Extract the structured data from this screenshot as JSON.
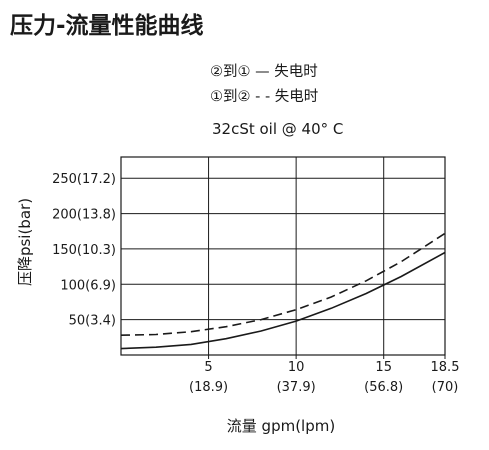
{
  "page": {
    "title": "压力-流量性能曲线"
  },
  "legend": {
    "items": [
      {
        "label": "②到① — 失电时",
        "style": "solid"
      },
      {
        "label": "①到② - - 失电时",
        "style": "dashed"
      }
    ],
    "placement": "top-center"
  },
  "condition": "32cSt oil @ 40° C",
  "chart_data": {
    "type": "line",
    "title": "压力-流量性能曲线",
    "xlabel": "流量 gpm(lpm)",
    "ylabel": "压降psi(bar)",
    "xlim": [
      0,
      18.5
    ],
    "ylim": [
      0,
      280
    ],
    "grid": true,
    "x_ticks": [
      {
        "value": 5,
        "label": "5",
        "sublabel": "(18.9)"
      },
      {
        "value": 10,
        "label": "10",
        "sublabel": "(37.9)"
      },
      {
        "value": 15,
        "label": "15",
        "sublabel": "(56.8)"
      },
      {
        "value": 18.5,
        "label": "18.5",
        "sublabel": "(70)"
      }
    ],
    "y_ticks": [
      {
        "value": 50,
        "label": "50(3.4)"
      },
      {
        "value": 100,
        "label": "100(6.9)"
      },
      {
        "value": 150,
        "label": "150(10.3)"
      },
      {
        "value": 200,
        "label": "200(13.8)"
      },
      {
        "value": 250,
        "label": "250(17.2)"
      }
    ],
    "series": [
      {
        "name": "②到① — 失电时",
        "style": "solid",
        "x": [
          0,
          2,
          4,
          6,
          8,
          10,
          12,
          14,
          16,
          18.5
        ],
        "y": [
          9,
          11,
          15,
          23,
          34,
          48,
          66,
          87,
          111,
          145
        ]
      },
      {
        "name": "①到② - - 失电时",
        "style": "dashed",
        "x": [
          0,
          2,
          4,
          6,
          8,
          10,
          12,
          14,
          16,
          18.5
        ],
        "y": [
          28,
          29,
          33,
          40,
          50,
          64,
          82,
          105,
          132,
          172
        ]
      }
    ]
  }
}
